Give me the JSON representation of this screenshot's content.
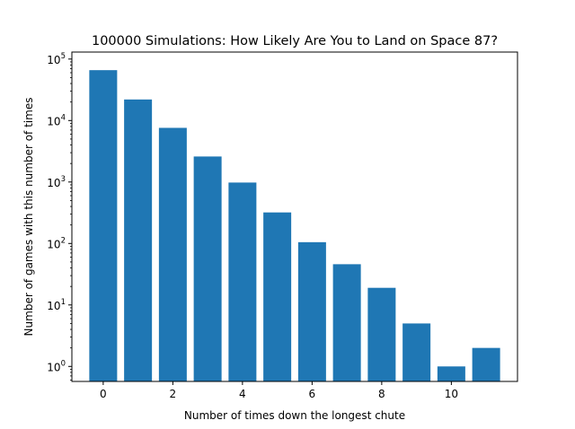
{
  "chart_data": {
    "type": "bar",
    "title": "100000 Simulations: How Likely Are You to Land on Space 87?",
    "xlabel": "Number of times down the longest chute",
    "ylabel": "Number of games with this number of times",
    "yscale": "log",
    "bar_color": "#1f77b4",
    "x": [
      0,
      1,
      2,
      3,
      4,
      5,
      6,
      7,
      8,
      9,
      10,
      11
    ],
    "values": [
      66000,
      22000,
      7600,
      2600,
      980,
      320,
      105,
      46,
      19,
      5,
      1,
      2
    ],
    "xticks": [
      0,
      2,
      4,
      6,
      8,
      10
    ],
    "yticks": [
      1,
      10,
      100,
      1000,
      10000,
      100000
    ],
    "ytick_labels": [
      {
        "base": "10",
        "exp": "0"
      },
      {
        "base": "10",
        "exp": "1"
      },
      {
        "base": "10",
        "exp": "2"
      },
      {
        "base": "10",
        "exp": "3"
      },
      {
        "base": "10",
        "exp": "4"
      },
      {
        "base": "10",
        "exp": "5"
      }
    ],
    "xlim": [
      -0.9,
      11.9
    ],
    "ylim": [
      0.57,
      130000
    ],
    "grid": false,
    "legend": false
  }
}
